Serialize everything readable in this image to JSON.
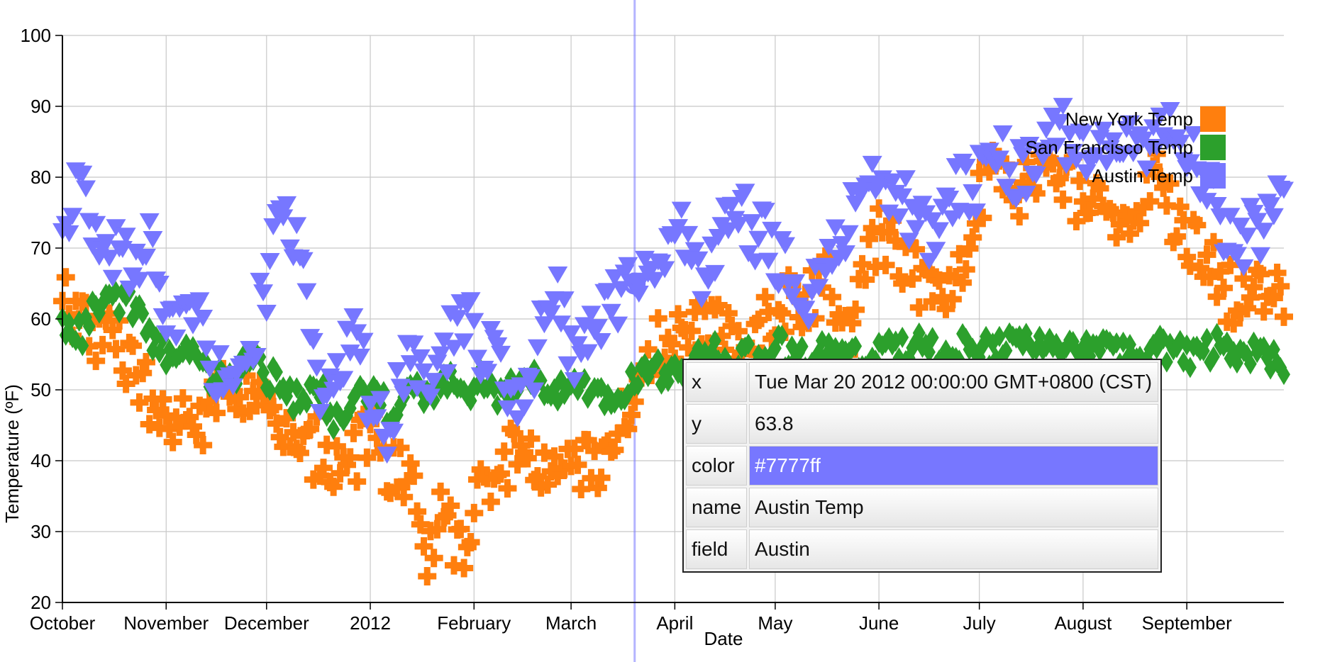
{
  "chart_data": {
    "type": "scatter",
    "title": "",
    "xlabel": "Date",
    "ylabel": "Temperature (ºF)",
    "ylim": [
      20,
      100
    ],
    "yticks": [
      20,
      30,
      40,
      50,
      60,
      70,
      80,
      90,
      100
    ],
    "xlim": [
      "2011-10-01",
      "2012-09-30"
    ],
    "xtick_labels": [
      {
        "date": "2011-10-01",
        "label": "October"
      },
      {
        "date": "2011-11-01",
        "label": "November"
      },
      {
        "date": "2011-12-01",
        "label": "December"
      },
      {
        "date": "2012-01-01",
        "label": "2012"
      },
      {
        "date": "2012-02-01",
        "label": "February"
      },
      {
        "date": "2012-03-01",
        "label": "March"
      },
      {
        "date": "2012-04-01",
        "label": "April"
      },
      {
        "date": "2012-05-01",
        "label": "May"
      },
      {
        "date": "2012-06-01",
        "label": "June"
      },
      {
        "date": "2012-07-01",
        "label": "July"
      },
      {
        "date": "2012-08-01",
        "label": "August"
      },
      {
        "date": "2012-09-01",
        "label": "September"
      }
    ],
    "grid": true,
    "legend_position": "top-right",
    "series": [
      {
        "name": "New York Temp",
        "color": "#ff7f0e",
        "marker": "plus-icon",
        "weekly_mean": [
          62,
          60,
          58,
          56,
          52,
          48,
          44,
          45,
          47,
          50,
          51,
          47,
          44,
          40,
          42,
          40,
          41,
          43,
          37,
          40,
          28,
          33,
          26,
          40,
          37,
          42,
          38,
          39,
          38,
          41,
          40,
          48,
          55,
          57,
          56,
          60,
          62,
          55,
          55,
          62,
          63,
          63,
          65,
          58,
          68,
          72,
          68,
          66,
          67,
          63,
          76,
          80,
          79,
          78,
          82,
          80,
          77,
          74,
          74,
          75,
          80,
          74,
          71,
          67,
          63,
          65,
          65,
          64
        ]
      },
      {
        "name": "San Francisco Temp",
        "color": "#2ca02c",
        "marker": "diamond-icon",
        "weekly_mean": [
          59,
          58,
          62,
          63,
          61,
          56,
          55,
          56,
          52,
          52,
          53,
          53,
          50,
          48,
          50,
          46,
          48,
          50,
          47,
          49,
          49,
          52,
          50,
          51,
          48,
          52,
          51,
          50,
          51,
          50,
          49,
          51,
          52,
          53,
          52,
          55,
          55,
          54,
          55,
          56,
          55,
          55,
          56,
          56,
          55,
          56,
          56,
          56,
          55,
          56,
          56,
          55,
          56,
          56,
          55,
          56,
          56,
          56,
          55,
          55,
          56,
          56,
          55,
          56,
          56,
          55,
          55,
          54
        ]
      },
      {
        "name": "Austin Temp",
        "color": "#7777ff",
        "marker": "triangle-down-icon",
        "weekly_mean": [
          70,
          80,
          71,
          69,
          68,
          72,
          58,
          65,
          55,
          51,
          52,
          63,
          74,
          70,
          48,
          50,
          62,
          45,
          44,
          57,
          48,
          55,
          60,
          56,
          54,
          48,
          55,
          65,
          53,
          60,
          62,
          65,
          68,
          70,
          72,
          65,
          72,
          75,
          72,
          70,
          65,
          62,
          70,
          72,
          80,
          77,
          77,
          73,
          72,
          78,
          79,
          83,
          81,
          82,
          85,
          86,
          83,
          82,
          85,
          84,
          85,
          85,
          84,
          78,
          70,
          72,
          73,
          76
        ]
      }
    ]
  },
  "legend": {
    "items": [
      {
        "label": "New York Temp",
        "color": "#ff7f0e"
      },
      {
        "label": "San Francisco Temp",
        "color": "#2ca02c"
      },
      {
        "label": "Austin Temp",
        "color": "#7777ff"
      }
    ]
  },
  "hover": {
    "date": "2012-03-20",
    "value": 63.8,
    "color": "#7777ff"
  },
  "tooltip": {
    "x_key": "x",
    "x_value": "Tue Mar 20 2012 00:00:00 GMT+0800 (CST)",
    "y_key": "y",
    "y_value": "63.8",
    "color_key": "color",
    "color_value": "#7777ff",
    "name_key": "name",
    "name_value": "Austin Temp",
    "field_key": "field",
    "field_value": "Austin"
  }
}
